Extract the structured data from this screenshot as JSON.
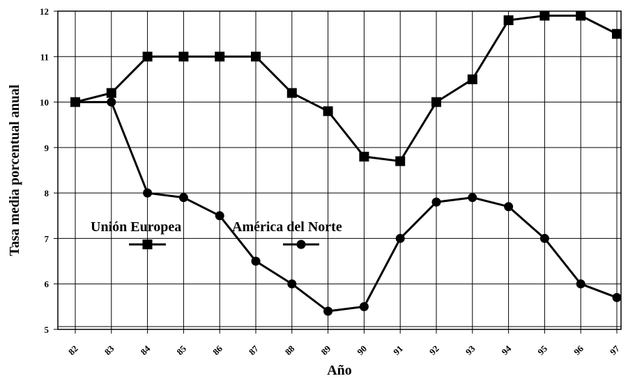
{
  "chart_data": {
    "type": "line",
    "title": "",
    "xlabel": "Año",
    "ylabel": "Tasa media porcentual anual",
    "categories": [
      "82",
      "83",
      "84",
      "85",
      "86",
      "87",
      "88",
      "89",
      "90",
      "91",
      "92",
      "93",
      "94",
      "95",
      "96",
      "97"
    ],
    "ylim": [
      5,
      12
    ],
    "yticks": [
      "5",
      "6",
      "7",
      "8",
      "9",
      "10",
      "11",
      "12"
    ],
    "grid": true,
    "legend_placement": "middle-left",
    "series": [
      {
        "name": "Unión Europea",
        "marker": "square",
        "color": "#000000",
        "values": [
          10.0,
          10.2,
          11.0,
          11.0,
          11.0,
          11.0,
          10.2,
          9.8,
          8.8,
          8.7,
          10.0,
          10.5,
          11.8,
          11.9,
          11.9,
          11.5
        ]
      },
      {
        "name": "América del Norte",
        "marker": "circle",
        "color": "#000000",
        "values": [
          10.0,
          10.0,
          8.0,
          7.9,
          7.5,
          6.5,
          6.0,
          5.4,
          5.5,
          7.0,
          7.8,
          7.9,
          7.7,
          7.0,
          6.0,
          5.7
        ]
      }
    ]
  }
}
